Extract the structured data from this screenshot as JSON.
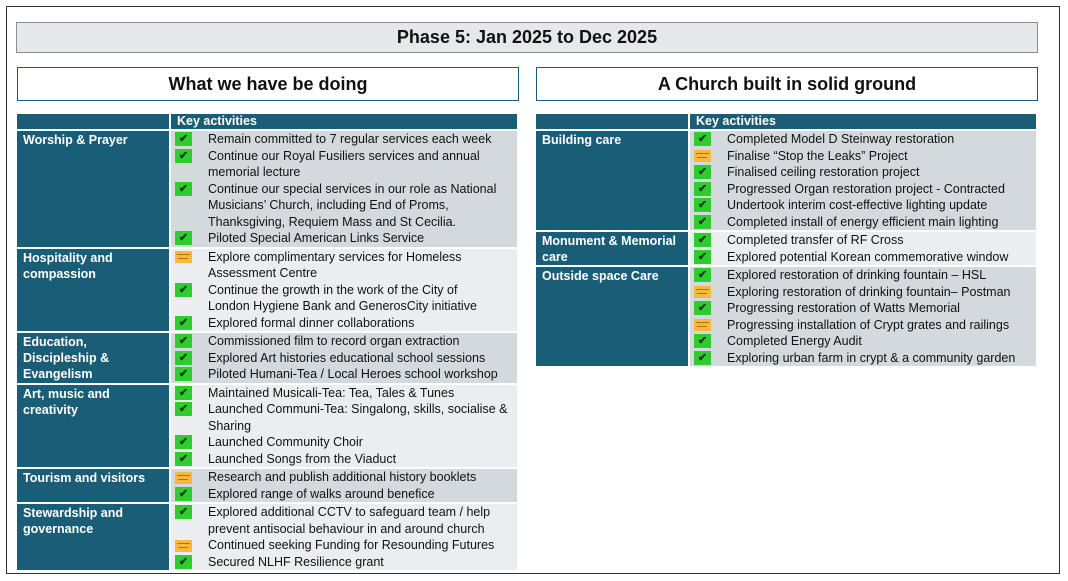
{
  "phase_title": "Phase 5: Jan 2025 to Dec 2025",
  "left": {
    "heading": "What we have be doing",
    "key_activities_label": "Key activities",
    "groups": [
      {
        "category": [
          "Worship & Prayer"
        ],
        "items": [
          {
            "status": "done",
            "lines": [
              "Remain committed to 7 regular services each week"
            ]
          },
          {
            "status": "done",
            "lines": [
              "Continue our Royal Fusiliers services and annual",
              "memorial lecture"
            ]
          },
          {
            "status": "done",
            "lines": [
              "Continue our special services in our role as National",
              "Musicians’ Church, including End of Proms,",
              "Thanksgiving, Requiem Mass and St Cecilia."
            ]
          },
          {
            "status": "done",
            "lines": [
              "Piloted Special American Links Service"
            ]
          }
        ]
      },
      {
        "category": [
          "Hospitality and",
          "compassion"
        ],
        "items": [
          {
            "status": "in-progress",
            "lines": [
              "Explore complimentary services for Homeless",
              "Assessment Centre"
            ]
          },
          {
            "status": "done",
            "lines": [
              "Continue the growth in the work of the City of",
              "London Hygiene Bank and GenerosCity initiative"
            ]
          },
          {
            "status": "done",
            "lines": [
              "Explored formal dinner collaborations"
            ]
          }
        ]
      },
      {
        "category": [
          "Education,",
          "Discipleship &",
          "Evangelism"
        ],
        "items": [
          {
            "status": "done",
            "lines": [
              "Commissioned film to record organ extraction"
            ]
          },
          {
            "status": "done",
            "lines": [
              "Explored Art histories educational school sessions"
            ]
          },
          {
            "status": "done",
            "lines": [
              "Piloted Humani-Tea / Local Heroes school workshop"
            ]
          }
        ]
      },
      {
        "category": [
          "Art, music and",
          "creativity"
        ],
        "items": [
          {
            "status": "done",
            "lines": [
              "Maintained Musicali-Tea: Tea, Tales & Tunes"
            ]
          },
          {
            "status": "done",
            "lines": [
              "Launched Communi-Tea: Singalong, skills, socialise &",
              "Sharing"
            ]
          },
          {
            "status": "done",
            "lines": [
              "Launched Community Choir"
            ]
          },
          {
            "status": "done",
            "lines": [
              "Launched Songs from the Viaduct"
            ]
          }
        ]
      },
      {
        "category": [
          "Tourism and visitors"
        ],
        "items": [
          {
            "status": "in-progress",
            "lines": [
              "Research and publish additional history booklets"
            ]
          },
          {
            "status": "done",
            "lines": [
              "Explored range of walks around benefice"
            ]
          }
        ]
      },
      {
        "category": [
          "Stewardship and",
          "governance"
        ],
        "items": [
          {
            "status": "done",
            "lines": [
              "Explored additional CCTV to safeguard team / help",
              "prevent antisocial behaviour in and around church"
            ]
          },
          {
            "status": "in-progress",
            "lines": [
              "Continued seeking Funding for Resounding Futures"
            ]
          },
          {
            "status": "done",
            "lines": [
              "Secured NLHF Resilience grant"
            ]
          }
        ]
      }
    ]
  },
  "right": {
    "heading": "A Church built in solid ground",
    "key_activities_label": "Key activities",
    "groups": [
      {
        "category": [
          "Building care"
        ],
        "items": [
          {
            "status": "done",
            "lines": [
              "Completed Model D Steinway restoration"
            ]
          },
          {
            "status": "in-progress",
            "lines": [
              "Finalise “Stop the Leaks” Project"
            ]
          },
          {
            "status": "done",
            "lines": [
              "Finalised ceiling restoration project"
            ]
          },
          {
            "status": "done",
            "lines": [
              "Progressed Organ restoration project - Contracted"
            ]
          },
          {
            "status": "done",
            "lines": [
              "Undertook interim cost-effective lighting update"
            ]
          },
          {
            "status": "done",
            "lines": [
              "Completed install of energy efficient main lighting"
            ]
          }
        ]
      },
      {
        "category": [
          "Monument & Memorial",
          "care"
        ],
        "items": [
          {
            "status": "done",
            "lines": [
              "Completed transfer of RF Cross"
            ]
          },
          {
            "status": "done",
            "lines": [
              "Explored potential Korean commemorative window"
            ]
          }
        ]
      },
      {
        "category": [
          "Outside space Care"
        ],
        "items": [
          {
            "status": "done",
            "lines": [
              "Explored restoration of drinking fountain – HSL"
            ]
          },
          {
            "status": "in-progress",
            "lines": [
              "Exploring restoration of drinking fountain– Postman"
            ]
          },
          {
            "status": "done",
            "lines": [
              "Progressing restoration of Watts Memorial"
            ]
          },
          {
            "status": "in-progress",
            "lines": [
              "Progressing installation of Crypt grates and railings"
            ]
          },
          {
            "status": "done",
            "lines": [
              "Completed Energy Audit"
            ]
          },
          {
            "status": "done",
            "lines": [
              "Exploring urban farm in crypt & a community garden"
            ]
          }
        ]
      }
    ]
  },
  "icons": {
    "done": "checkmark-icon",
    "in-progress": "sticky-note-icon"
  },
  "colors": {
    "header_teal": "#1a5d76",
    "check_green": "#2ecc2e",
    "sticky_orange": "#f6b93b",
    "row_shade_a": "#d4d9de",
    "row_shade_b": "#ebedf0"
  }
}
